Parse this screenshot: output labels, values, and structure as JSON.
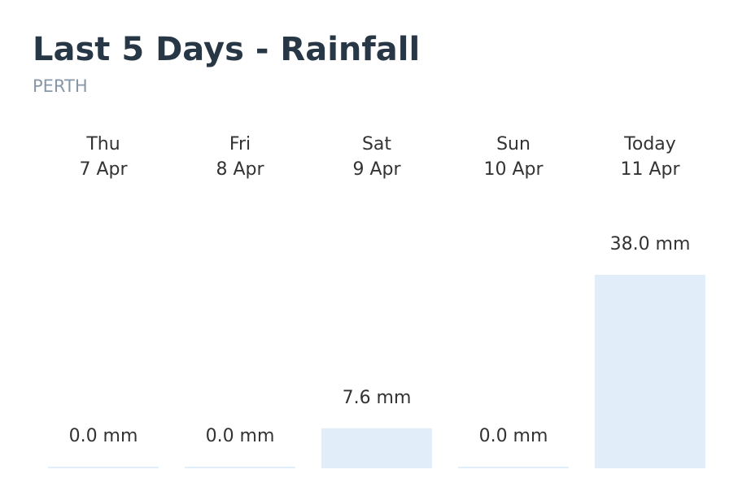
{
  "chart_data": {
    "type": "bar",
    "title": "Last 5 Days - Rainfall",
    "subtitle": "PERTH",
    "categories": [
      "Thu",
      "Fri",
      "Sat",
      "Sun",
      "Today"
    ],
    "category_dates": [
      "7 Apr",
      "8 Apr",
      "9 Apr",
      "10 Apr",
      "11 Apr"
    ],
    "values": [
      0.0,
      0.0,
      7.6,
      0.0,
      38.0
    ],
    "value_labels": [
      "0.0 mm",
      "0.0 mm",
      "7.6 mm",
      "0.0 mm",
      "38.0 mm"
    ],
    "color": "#e1eef9"
  }
}
